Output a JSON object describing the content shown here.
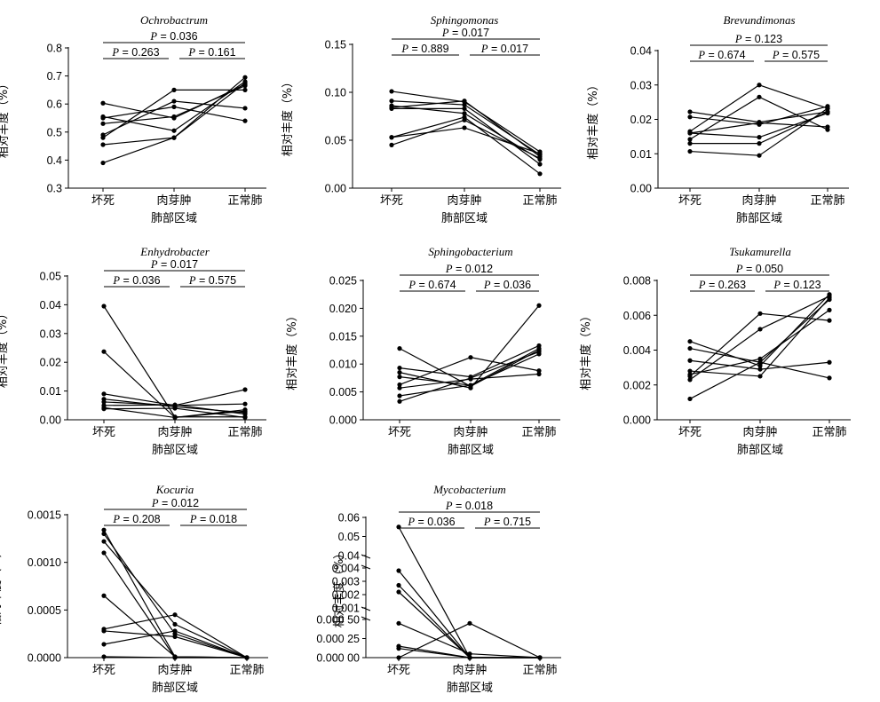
{
  "chart_data": [
    {
      "type": "line",
      "title": "Ochrobactrum",
      "xlabel": "肺部区域",
      "ylabel": "相对丰度（%）",
      "categories": [
        "坏死",
        "肉芽肿",
        "正常肺"
      ],
      "ylim": [
        0.3,
        0.8
      ],
      "yticks": [
        "0.3",
        "0.4",
        "0.5",
        "0.6",
        "0.7",
        "0.8"
      ],
      "comparisons": [
        {
          "groups": [
            0,
            2
          ],
          "label": "P = 0.036"
        },
        {
          "groups": [
            0,
            1
          ],
          "label": "P = 0.263"
        },
        {
          "groups": [
            1,
            2
          ],
          "label": "P = 0.161"
        }
      ],
      "series": [
        {
          "values": [
            0.39,
            0.48,
            0.675
          ]
        },
        {
          "values": [
            0.455,
            0.48,
            0.695
          ]
        },
        {
          "values": [
            0.48,
            0.65,
            0.65
          ]
        },
        {
          "values": [
            0.49,
            0.61,
            0.585
          ]
        },
        {
          "values": [
            0.53,
            0.555,
            0.665
          ]
        },
        {
          "values": [
            0.55,
            0.59,
            0.54
          ]
        },
        {
          "values": [
            0.555,
            0.505,
            0.68
          ]
        },
        {
          "values": [
            0.603,
            0.55,
            0.67
          ]
        }
      ]
    },
    {
      "type": "line",
      "title": "Sphingomonas",
      "xlabel": "肺部区域",
      "ylabel": "相对丰度（%）",
      "categories": [
        "坏死",
        "肉芽肿",
        "正常肺"
      ],
      "ylim": [
        0,
        0.15
      ],
      "yticks": [
        "0.00",
        "0.05",
        "0.10",
        "0.15"
      ],
      "comparisons": [
        {
          "groups": [
            0,
            2
          ],
          "label": "P = 0.017"
        },
        {
          "groups": [
            0,
            1
          ],
          "label": "P = 0.889"
        },
        {
          "groups": [
            1,
            2
          ],
          "label": "P = 0.017"
        }
      ],
      "series": [
        {
          "values": [
            0.101,
            0.09,
            0.038
          ]
        },
        {
          "values": [
            0.091,
            0.087,
            0.035
          ]
        },
        {
          "values": [
            0.086,
            0.078,
            0.03
          ]
        },
        {
          "values": [
            0.084,
            0.091,
            0.033
          ]
        },
        {
          "values": [
            0.083,
            0.083,
            0.025
          ]
        },
        {
          "values": [
            0.053,
            0.063,
            0.036
          ]
        },
        {
          "values": [
            0.053,
            0.074,
            0.015
          ]
        },
        {
          "values": [
            0.045,
            0.071,
            0.031
          ]
        }
      ]
    },
    {
      "type": "line",
      "title": "Brevundimonas",
      "xlabel": "肺部区域",
      "ylabel": "相对丰度（%）",
      "categories": [
        "坏死",
        "肉芽肿",
        "正常肺"
      ],
      "ylim": [
        0,
        0.04
      ],
      "yticks": [
        "0.00",
        "0.01",
        "0.02",
        "0.03",
        "0.04"
      ],
      "comparisons": [
        {
          "groups": [
            0,
            2
          ],
          "label": "P = 0.123"
        },
        {
          "groups": [
            0,
            1
          ],
          "label": "P = 0.674"
        },
        {
          "groups": [
            1,
            2
          ],
          "label": "P = 0.575"
        }
      ],
      "series": [
        {
          "values": [
            0.0222,
            0.0192,
            0.0222
          ]
        },
        {
          "values": [
            0.0207,
            0.0185,
            0.0238
          ]
        },
        {
          "values": [
            0.0165,
            0.03,
            0.0232
          ]
        },
        {
          "values": [
            0.016,
            0.0148,
            0.0218
          ]
        },
        {
          "values": [
            0.0142,
            0.0265,
            0.017
          ]
        },
        {
          "values": [
            0.013,
            0.013,
            0.0222
          ]
        },
        {
          "values": [
            0.0107,
            0.0095,
            0.0232
          ]
        },
        {
          "values": [
            0.016,
            0.019,
            0.0178
          ]
        }
      ]
    },
    {
      "type": "line",
      "title": "Enhydrobacter",
      "xlabel": "肺部区域",
      "ylabel": "相对丰度（%）",
      "categories": [
        "坏死",
        "肉芽肿",
        "正常肺"
      ],
      "ylim": [
        0,
        0.05
      ],
      "yticks": [
        "0.00",
        "0.01",
        "0.02",
        "0.03",
        "0.04",
        "0.05"
      ],
      "comparisons": [
        {
          "groups": [
            0,
            2
          ],
          "label": "P = 0.017"
        },
        {
          "groups": [
            0,
            1
          ],
          "label": "P = 0.036"
        },
        {
          "groups": [
            1,
            2
          ],
          "label": "P = 0.575"
        }
      ],
      "series": [
        {
          "values": [
            0.0395,
            0.001,
            0.001
          ]
        },
        {
          "values": [
            0.0237,
            0.0008,
            0.003
          ]
        },
        {
          "values": [
            0.009,
            0.005,
            0.0105
          ]
        },
        {
          "values": [
            0.0072,
            0.0045,
            0.0025
          ]
        },
        {
          "values": [
            0.0062,
            0.005,
            0.0055
          ]
        },
        {
          "values": [
            0.005,
            0.0052,
            0.002
          ]
        },
        {
          "values": [
            0.0042,
            0.0008,
            0.0035
          ]
        },
        {
          "values": [
            0.0038,
            0.004,
            0.0008
          ]
        }
      ]
    },
    {
      "type": "line",
      "title": "Sphingobacterium",
      "xlabel": "肺部区域",
      "ylabel": "相对丰度（%）",
      "categories": [
        "坏死",
        "肉芽肿",
        "正常肺"
      ],
      "ylim": [
        0,
        0.025
      ],
      "yticks": [
        "0.000",
        "0.005",
        "0.010",
        "0.015",
        "0.020",
        "0.025"
      ],
      "comparisons": [
        {
          "groups": [
            0,
            2
          ],
          "label": "P = 0.012"
        },
        {
          "groups": [
            0,
            1
          ],
          "label": "P = 0.674"
        },
        {
          "groups": [
            1,
            2
          ],
          "label": "P = 0.036"
        }
      ],
      "series": [
        {
          "values": [
            0.0128,
            0.006,
            0.0125
          ]
        },
        {
          "values": [
            0.0093,
            0.0077,
            0.0133
          ]
        },
        {
          "values": [
            0.0085,
            0.0057,
            0.0205
          ]
        },
        {
          "values": [
            0.0077,
            0.0062,
            0.0118
          ]
        },
        {
          "values": [
            0.0063,
            0.0112,
            0.0088
          ]
        },
        {
          "values": [
            0.0057,
            0.0073,
            0.0082
          ]
        },
        {
          "values": [
            0.0043,
            0.0062,
            0.0128
          ]
        },
        {
          "values": [
            0.0033,
            0.0075,
            0.0122
          ]
        }
      ]
    },
    {
      "type": "line",
      "title": "Tsukamurella",
      "xlabel": "肺部区域",
      "ylabel": "相对丰度（%）",
      "categories": [
        "坏死",
        "肉芽肿",
        "正常肺"
      ],
      "ylim": [
        0,
        0.008
      ],
      "yticks": [
        "0.000",
        "0.002",
        "0.004",
        "0.006",
        "0.008"
      ],
      "comparisons": [
        {
          "groups": [
            0,
            2
          ],
          "label": "P = 0.050"
        },
        {
          "groups": [
            0,
            1
          ],
          "label": "P = 0.263"
        },
        {
          "groups": [
            1,
            2
          ],
          "label": "P = 0.123"
        }
      ],
      "series": [
        {
          "values": [
            0.0045,
            0.0031,
            0.0072
          ]
        },
        {
          "values": [
            0.0041,
            0.0033,
            0.0024
          ]
        },
        {
          "values": [
            0.0034,
            0.0029,
            0.0033
          ]
        },
        {
          "values": [
            0.0028,
            0.0025,
            0.007
          ]
        },
        {
          "values": [
            0.0026,
            0.0035,
            0.0063
          ]
        },
        {
          "values": [
            0.0025,
            0.0061,
            0.0057
          ]
        },
        {
          "values": [
            0.0023,
            0.0052,
            0.0071
          ]
        },
        {
          "values": [
            0.0012,
            0.0033,
            0.0069
          ]
        }
      ]
    },
    {
      "type": "line",
      "title": "Kocuria",
      "xlabel": "肺部区域",
      "ylabel": "相对丰度（%）",
      "categories": [
        "坏死",
        "肉芽肿",
        "正常肺"
      ],
      "ylim": [
        0,
        0.0015
      ],
      "yticks": [
        "0.0000",
        "0.0005",
        "0.0010",
        "0.0015"
      ],
      "comparisons": [
        {
          "groups": [
            0,
            2
          ],
          "label": "P = 0.012"
        },
        {
          "groups": [
            0,
            1
          ],
          "label": "P = 0.208"
        },
        {
          "groups": [
            1,
            2
          ],
          "label": "P = 0.018"
        }
      ],
      "series": [
        {
          "values": [
            0.00134,
            1e-05,
            0.0
          ]
        },
        {
          "values": [
            0.0013,
            0.00025,
            0.0
          ]
        },
        {
          "values": [
            0.00122,
            0.00035,
            0.0
          ]
        },
        {
          "values": [
            0.0011,
            0.0,
            0.0
          ]
        },
        {
          "values": [
            0.00065,
            1e-05,
            0.0
          ]
        },
        {
          "values": [
            0.0003,
            0.00045,
            0.0
          ]
        },
        {
          "values": [
            0.00028,
            0.00022,
            0.0
          ]
        },
        {
          "values": [
            0.00014,
            0.00028,
            0.0
          ]
        },
        {
          "values": [
            1e-05,
            0.0,
            0.0
          ]
        }
      ]
    },
    {
      "type": "line",
      "title": "Mycobacterium",
      "xlabel": "肺部区域",
      "ylabel": "相对丰度（%）",
      "categories": [
        "坏死",
        "肉芽肿",
        "正常肺"
      ],
      "broken_y_axis": true,
      "ylim": [
        0,
        0.06
      ],
      "yticks": [
        "0.000 00",
        "0.000 25",
        "0.000 50",
        "0.001",
        "0.002",
        "0.003",
        "0.004",
        "0.04",
        "0.05",
        "0.06"
      ],
      "comparisons": [
        {
          "groups": [
            0,
            2
          ],
          "label": "P = 0.018"
        },
        {
          "groups": [
            0,
            1
          ],
          "label": "P = 0.036"
        },
        {
          "groups": [
            1,
            2
          ],
          "label": "P = 0.715"
        }
      ],
      "series": [
        {
          "values": [
            0.055,
            0.0,
            0.0
          ]
        },
        {
          "values": [
            0.0038,
            0.0,
            0.0
          ]
        },
        {
          "values": [
            0.0027,
            0.0,
            0.0
          ]
        },
        {
          "values": [
            0.0022,
            0.0,
            0.0
          ]
        },
        {
          "values": [
            0.00045,
            5e-05,
            0.0
          ]
        },
        {
          "values": [
            0.00015,
            0.0,
            0.0
          ]
        },
        {
          "values": [
            0.00012,
            0.0,
            0.0
          ]
        },
        {
          "values": [
            0.0,
            0.00045,
            0.0
          ]
        }
      ]
    }
  ]
}
